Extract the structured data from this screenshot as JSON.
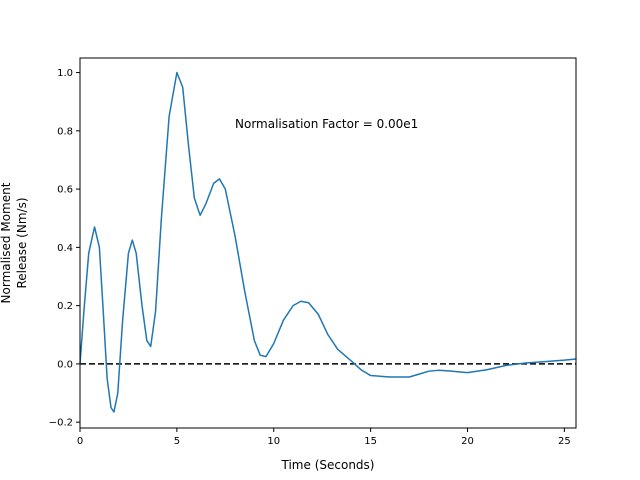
{
  "chart_data": {
    "type": "line",
    "xlabel": "Time (Seconds)",
    "ylabel": [
      "Normalised Moment",
      "Release (Nm/s)"
    ],
    "xlim": [
      0,
      25.6
    ],
    "ylim": [
      -0.22,
      1.05
    ],
    "xticks": [
      0,
      5,
      10,
      15,
      20,
      25
    ],
    "xtick_labels": [
      "0",
      "5",
      "10",
      "15",
      "20",
      "25"
    ],
    "yticks": [
      -0.2,
      0.0,
      0.2,
      0.4,
      0.6,
      0.8,
      1.0
    ],
    "ytick_labels": [
      "−0.2",
      "0.0",
      "0.2",
      "0.4",
      "0.6",
      "0.8",
      "1.0"
    ],
    "grid": false,
    "annotation": {
      "text": "Normalisation Factor = 0.00e1",
      "x": 8.0,
      "y": 0.81
    },
    "reference_line": {
      "y": 0.0,
      "style": "dashed",
      "color": "#000000"
    },
    "series": [
      {
        "color": "#1f77b4",
        "points": [
          [
            0.0,
            0.0
          ],
          [
            0.2,
            0.18
          ],
          [
            0.45,
            0.38
          ],
          [
            0.75,
            0.47
          ],
          [
            1.0,
            0.4
          ],
          [
            1.2,
            0.18
          ],
          [
            1.4,
            -0.05
          ],
          [
            1.6,
            -0.15
          ],
          [
            1.75,
            -0.165
          ],
          [
            1.95,
            -0.1
          ],
          [
            2.2,
            0.15
          ],
          [
            2.5,
            0.38
          ],
          [
            2.7,
            0.425
          ],
          [
            2.9,
            0.38
          ],
          [
            3.2,
            0.2
          ],
          [
            3.45,
            0.08
          ],
          [
            3.65,
            0.06
          ],
          [
            3.9,
            0.18
          ],
          [
            4.2,
            0.5
          ],
          [
            4.6,
            0.85
          ],
          [
            5.0,
            1.0
          ],
          [
            5.3,
            0.95
          ],
          [
            5.6,
            0.75
          ],
          [
            5.9,
            0.57
          ],
          [
            6.2,
            0.51
          ],
          [
            6.5,
            0.55
          ],
          [
            6.9,
            0.62
          ],
          [
            7.2,
            0.635
          ],
          [
            7.5,
            0.6
          ],
          [
            8.0,
            0.44
          ],
          [
            8.5,
            0.25
          ],
          [
            9.0,
            0.08
          ],
          [
            9.3,
            0.03
          ],
          [
            9.6,
            0.025
          ],
          [
            10.0,
            0.07
          ],
          [
            10.5,
            0.15
          ],
          [
            11.0,
            0.2
          ],
          [
            11.4,
            0.215
          ],
          [
            11.8,
            0.21
          ],
          [
            12.3,
            0.17
          ],
          [
            12.8,
            0.1
          ],
          [
            13.3,
            0.05
          ],
          [
            14.0,
            0.01
          ],
          [
            14.5,
            -0.02
          ],
          [
            15.0,
            -0.04
          ],
          [
            16.0,
            -0.045
          ],
          [
            17.0,
            -0.045
          ],
          [
            17.5,
            -0.035
          ],
          [
            18.0,
            -0.025
          ],
          [
            18.5,
            -0.022
          ],
          [
            19.0,
            -0.024
          ],
          [
            20.0,
            -0.03
          ],
          [
            21.0,
            -0.02
          ],
          [
            22.0,
            -0.005
          ],
          [
            23.0,
            0.003
          ],
          [
            24.0,
            0.008
          ],
          [
            25.0,
            0.013
          ],
          [
            25.6,
            0.017
          ]
        ]
      }
    ]
  }
}
